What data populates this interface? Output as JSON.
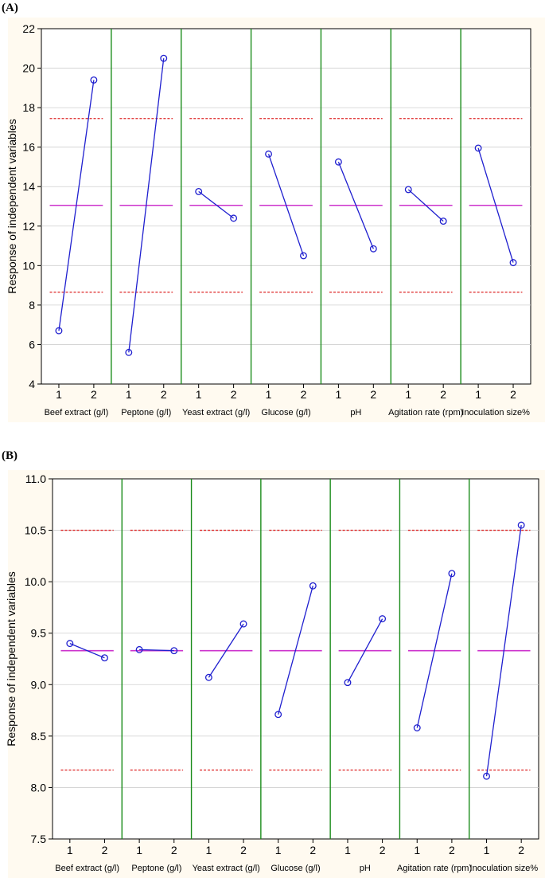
{
  "chart_data": [
    {
      "tag": "(A)",
      "type": "line",
      "ylabel": "Response of independent variables",
      "ylim": [
        4,
        22
      ],
      "yticks": [
        4,
        6,
        8,
        10,
        12,
        14,
        16,
        18,
        20,
        22
      ],
      "ytick_labels": [
        "4",
        "6",
        "8",
        "10",
        "12",
        "14",
        "16",
        "18",
        "20",
        "22"
      ],
      "levels": [
        "1",
        "2"
      ],
      "mean": 13.05,
      "upper_limit": 17.45,
      "lower_limit": 8.65,
      "factors": [
        {
          "name": "Beef extract (g/l)",
          "values": [
            6.7,
            19.4
          ]
        },
        {
          "name": "Peptone (g/l)",
          "values": [
            5.6,
            20.5
          ]
        },
        {
          "name": "Yeast extract (g/l)",
          "values": [
            13.75,
            12.4
          ]
        },
        {
          "name": "Glucose (g/l)",
          "values": [
            15.65,
            10.5
          ]
        },
        {
          "name": "pH",
          "values": [
            15.25,
            10.85
          ]
        },
        {
          "name": "Agitation rate (rpm)",
          "values": [
            13.85,
            12.25
          ]
        },
        {
          "name": "Inoculation size%",
          "values": [
            15.95,
            10.15
          ]
        }
      ]
    },
    {
      "tag": "(B)",
      "type": "line",
      "ylabel": "Response of independent variables",
      "ylim": [
        7.5,
        11.0
      ],
      "yticks": [
        7.5,
        8.0,
        8.5,
        9.0,
        9.5,
        10.0,
        10.5,
        11.0
      ],
      "ytick_labels": [
        "7.5",
        "8.0",
        "8.5",
        "9.0",
        "9.5",
        "10.0",
        "10.5",
        "11.0"
      ],
      "levels": [
        "1",
        "2"
      ],
      "mean": 9.33,
      "upper_limit": 10.5,
      "lower_limit": 8.17,
      "factors": [
        {
          "name": "Beef extract (g/l)",
          "values": [
            9.4,
            9.26
          ]
        },
        {
          "name": "Peptone (g/l)",
          "values": [
            9.34,
            9.33
          ]
        },
        {
          "name": "Yeast extract (g/l)",
          "values": [
            9.07,
            9.59
          ]
        },
        {
          "name": "Glucose (g/l)",
          "values": [
            8.71,
            9.96
          ]
        },
        {
          "name": "pH",
          "values": [
            9.02,
            9.64
          ]
        },
        {
          "name": "Agitation rate (rpm)",
          "values": [
            8.58,
            10.08
          ]
        },
        {
          "name": "Inoculation size%",
          "values": [
            8.11,
            10.55
          ]
        }
      ]
    }
  ]
}
